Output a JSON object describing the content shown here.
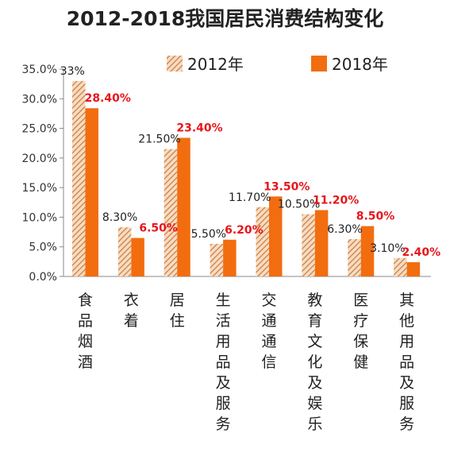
{
  "chart_data": {
    "type": "bar",
    "title": "2012-2018我国居民消费结构变化",
    "categories": [
      "食品烟酒",
      "衣着",
      "居住",
      "生活用品及服务",
      "交通通信",
      "教育文化及娱乐",
      "医疗保健",
      "其他用品及服务"
    ],
    "series": [
      {
        "name": "2012年",
        "values": [
          33.0,
          8.3,
          21.5,
          5.5,
          11.7,
          10.5,
          6.3,
          3.1
        ],
        "labels": [
          "33%",
          "8.30%",
          "21.50%",
          "5.50%",
          "11.70%",
          "10.50%",
          "6.30%",
          "3.10%"
        ],
        "color": "#d9915a",
        "pattern": "hatched"
      },
      {
        "name": "2018年",
        "values": [
          28.4,
          6.5,
          23.4,
          6.2,
          13.5,
          11.2,
          8.5,
          2.4
        ],
        "labels": [
          "28.40%",
          "6.50%",
          "23.40%",
          "6.20%",
          "13.50%",
          "11.20%",
          "8.50%",
          "2.40%"
        ],
        "color": "#f26d0f",
        "label_color": "#e8161b"
      }
    ],
    "ylim": [
      0,
      35
    ],
    "yticks": [
      "0.0%",
      "5.0%",
      "10.0%",
      "15.0%",
      "20.0%",
      "25.0%",
      "30.0%",
      "35.0%"
    ],
    "xlabel": "",
    "ylabel": "",
    "grid": false,
    "legend_position": "top"
  }
}
